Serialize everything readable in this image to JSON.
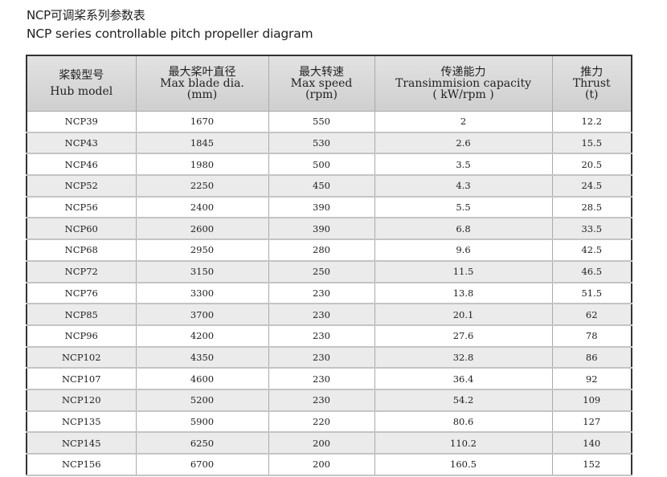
{
  "title_cn": "NCP可调桨系列参数表",
  "title_en": "NCP series controllable pitch propeller diagram",
  "headers": [
    {
      "cn": "桨毂型号",
      "en": "Hub model",
      "unit": ""
    },
    {
      "cn": "最大桨叶直径",
      "en": "Max blade dia.",
      "unit": "(mm)"
    },
    {
      "cn": "最大转速",
      "en": "Max speed",
      "unit": "(rpm)"
    },
    {
      "cn": "传递能力",
      "en": "Transimmision capacity",
      "unit": "( kW/rpm )"
    },
    {
      "cn": "推力",
      "en": "Thrust",
      "unit": "(t)"
    }
  ],
  "rows": [
    [
      "NCP39",
      "1670",
      "550",
      "2",
      "12.2"
    ],
    [
      "NCP43",
      "1845",
      "530",
      "2.6",
      "15.5"
    ],
    [
      "NCP46",
      "1980",
      "500",
      "3.5",
      "20.5"
    ],
    [
      "NCP52",
      "2250",
      "450",
      "4.3",
      "24.5"
    ],
    [
      "NCP56",
      "2400",
      "390",
      "5.5",
      "28.5"
    ],
    [
      "NCP60",
      "2600",
      "390",
      "6.8",
      "33.5"
    ],
    [
      "NCP68",
      "2950",
      "280",
      "9.6",
      "42.5"
    ],
    [
      "NCP72",
      "3150",
      "250",
      "11.5",
      "46.5"
    ],
    [
      "NCP76",
      "3300",
      "230",
      "13.8",
      "51.5"
    ],
    [
      "NCP85",
      "3700",
      "230",
      "20.1",
      "62"
    ],
    [
      "NCP96",
      "4200",
      "230",
      "27.6",
      "78"
    ],
    [
      "NCP102",
      "4350",
      "230",
      "32.8",
      "86"
    ],
    [
      "NCP107",
      "4600",
      "230",
      "36.4",
      "92"
    ],
    [
      "NCP120",
      "5200",
      "230",
      "54.2",
      "109"
    ],
    [
      "NCP135",
      "5900",
      "220",
      "80.6",
      "127"
    ],
    [
      "NCP145",
      "6250",
      "200",
      "110.2",
      "140"
    ],
    [
      "NCP156",
      "6700",
      "200",
      "160.5",
      "152"
    ]
  ]
}
